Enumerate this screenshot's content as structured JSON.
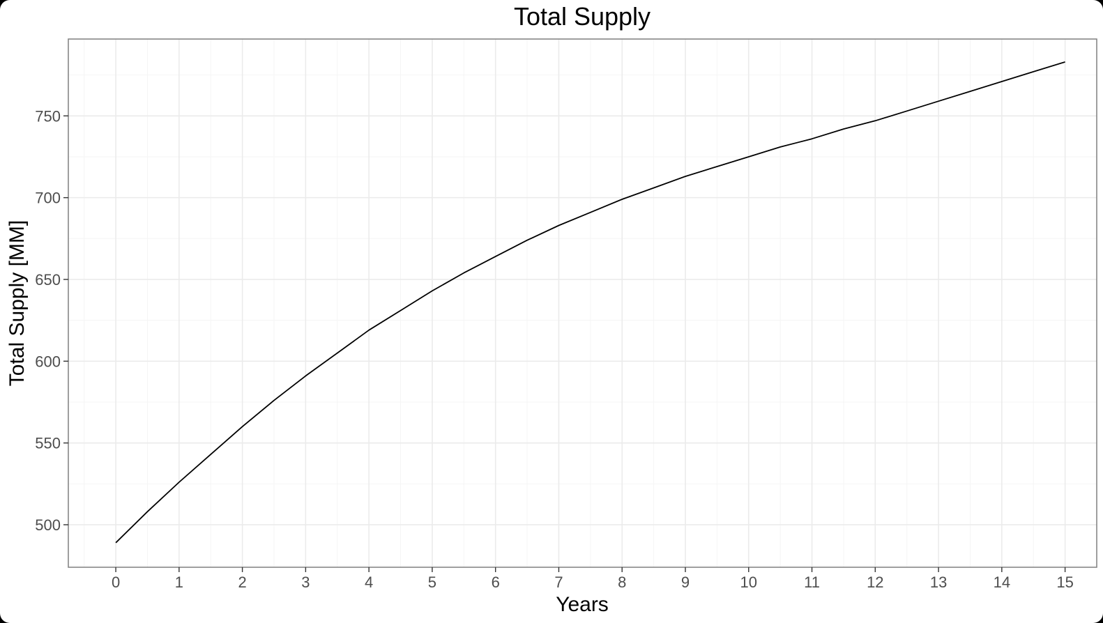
{
  "chart_data": {
    "type": "line",
    "title": "Total Supply",
    "xlabel": "Years",
    "ylabel": "Total Supply [MM]",
    "xlim": [
      -0.75,
      15.5
    ],
    "ylim": [
      474,
      797
    ],
    "x_ticks": [
      0,
      1,
      2,
      3,
      4,
      5,
      6,
      7,
      8,
      9,
      10,
      11,
      12,
      13,
      14,
      15
    ],
    "x_tick_labels": [
      "0",
      "1",
      "2",
      "3",
      "4",
      "5",
      "6",
      "7",
      "8",
      "9",
      "10",
      "11",
      "12",
      "13",
      "14",
      "15"
    ],
    "y_ticks": [
      500,
      550,
      600,
      650,
      700,
      750
    ],
    "y_tick_labels": [
      "500",
      "550",
      "600",
      "650",
      "700",
      "750"
    ],
    "grid": true,
    "legend": "none",
    "series": [
      {
        "color": "#000000",
        "x": [
          0,
          0.5,
          1,
          1.5,
          2,
          2.5,
          3,
          3.5,
          4,
          4.5,
          5,
          5.5,
          6,
          6.5,
          7,
          7.5,
          8,
          8.5,
          9,
          9.5,
          10,
          10.5,
          11,
          11.5,
          12,
          12.5,
          13,
          13.5,
          14,
          14.5,
          15
        ],
        "y": [
          489,
          508,
          526,
          543,
          560,
          576,
          591,
          605,
          619,
          631,
          643,
          654,
          664,
          674,
          683,
          691,
          699,
          706,
          713,
          719,
          725,
          731,
          736,
          742,
          747,
          753,
          759,
          765,
          771,
          777,
          783
        ]
      }
    ]
  },
  "colors": {
    "background": "#ffffff",
    "panel_border": "#7f7f7f",
    "grid_major": "#ebebeb",
    "grid_minor": "#f5f5f5",
    "line": "#000000",
    "tick_label": "#4d4d4d"
  }
}
